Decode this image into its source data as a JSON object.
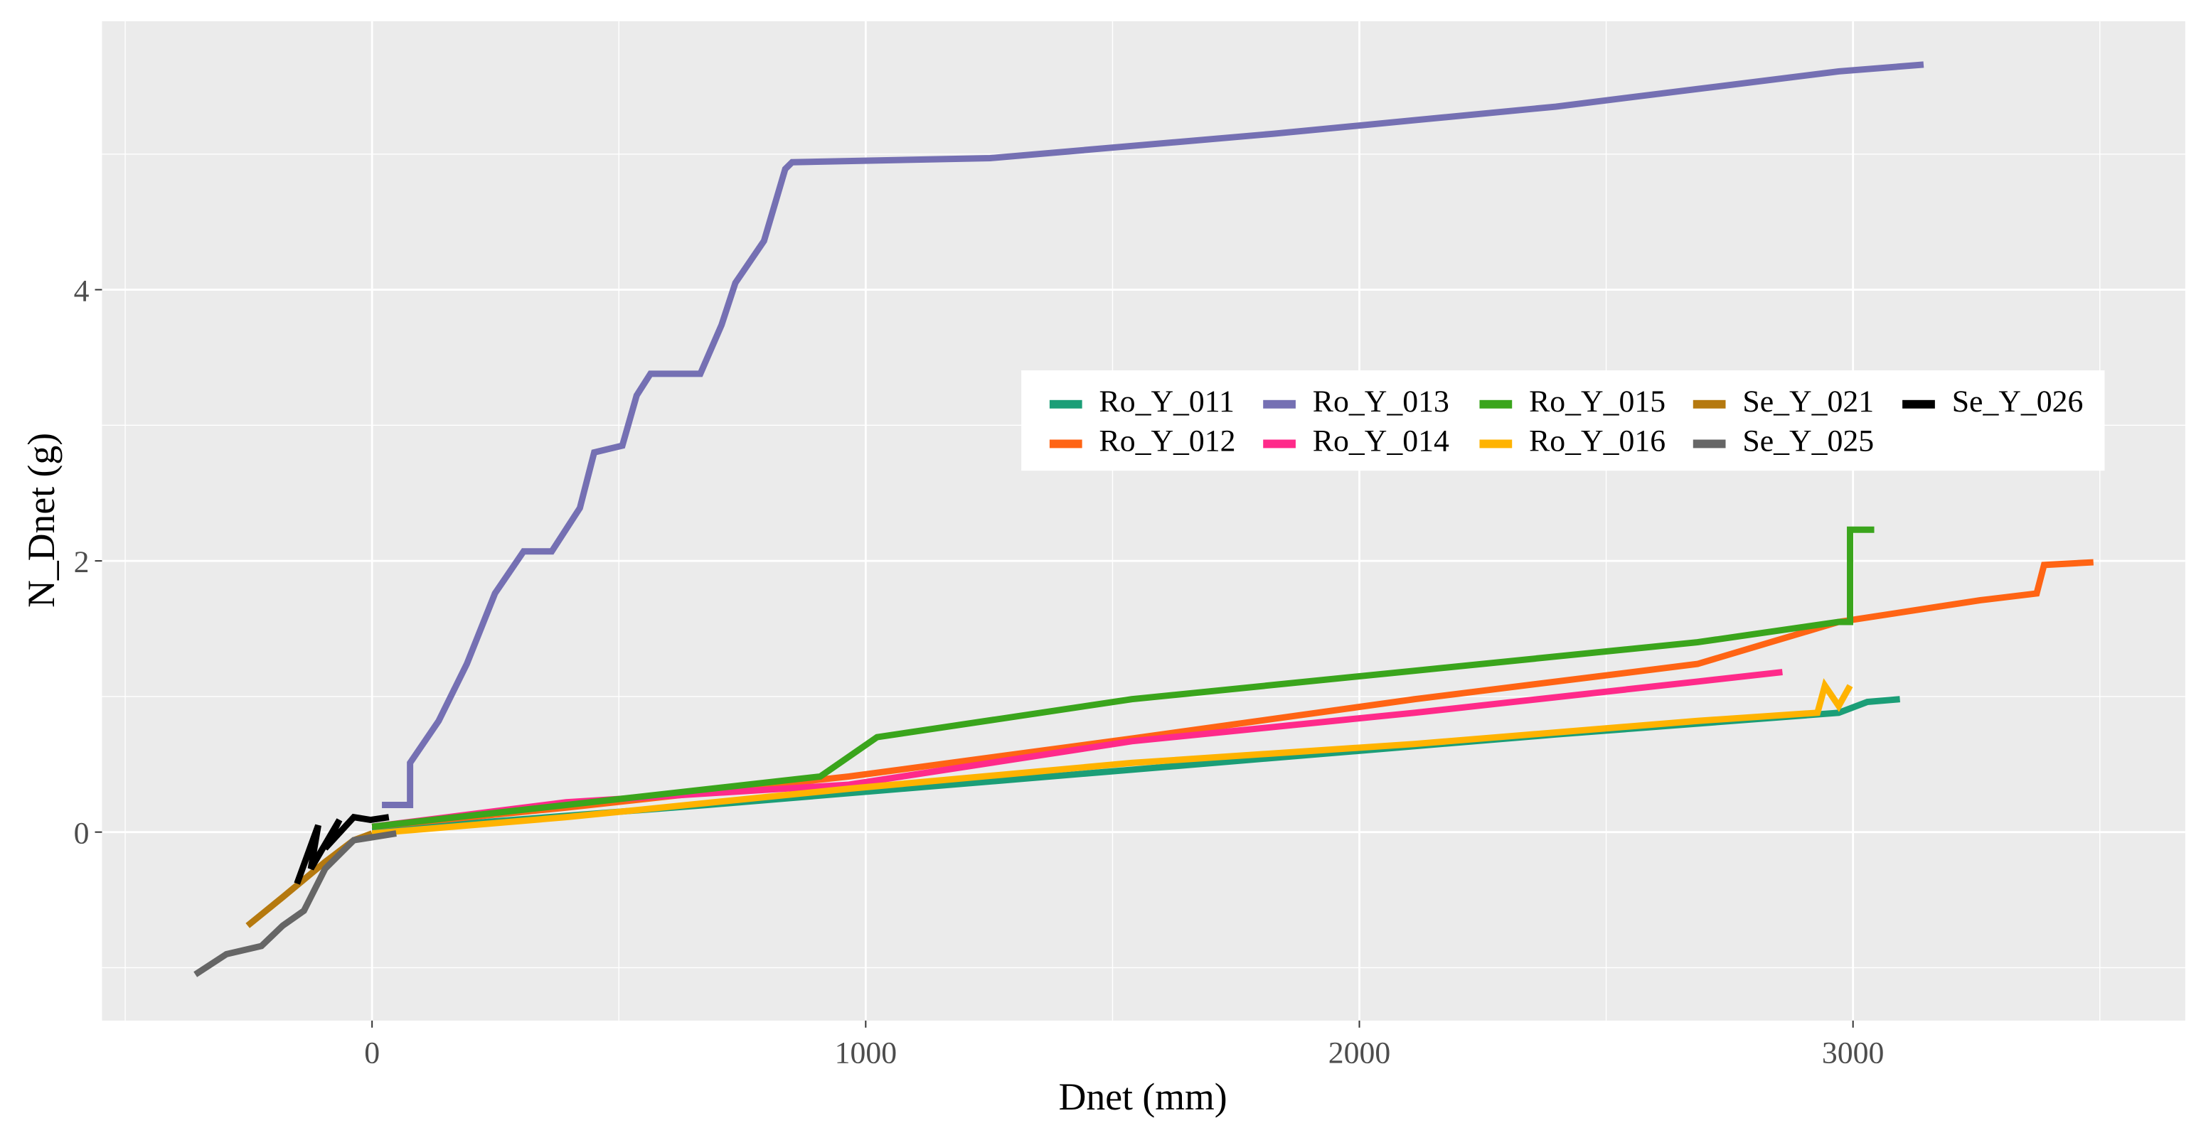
{
  "chart_data": {
    "type": "line",
    "x_label": "Dnet (mm)",
    "y_label": "N_Dnet (g)",
    "xlim": [
      -547,
      3673
    ],
    "ylim": [
      -1.39,
      5.98
    ],
    "xticks": [
      0,
      1000,
      2000,
      3000
    ],
    "yticks": [
      0,
      2,
      4
    ],
    "xminor": [
      -500,
      500,
      1500,
      2500,
      3500
    ],
    "yminor": [
      -1,
      1,
      3,
      5
    ],
    "grid": true,
    "series": [
      {
        "name": "Ro_Y_011",
        "color": "#1b9e77",
        "x": [
          0,
          679,
          1539,
          2398,
          2971,
          3029,
          3095
        ],
        "values": [
          0.01,
          0.2,
          0.46,
          0.72,
          0.88,
          0.96,
          0.98
        ]
      },
      {
        "name": "Ro_Y_012",
        "color": "#ff6414",
        "x": [
          0,
          393,
          966,
          1539,
          2112,
          2685,
          2971,
          3258,
          3372,
          3387,
          3487
        ],
        "values": [
          0.04,
          0.18,
          0.41,
          0.69,
          0.98,
          1.24,
          1.55,
          1.71,
          1.76,
          1.97,
          1.99
        ]
      },
      {
        "name": "Ro_Y_013",
        "color": "#7570b3",
        "x": [
          20,
          77,
          77,
          135,
          192,
          249,
          307,
          364,
          421,
          450,
          507,
          536,
          564,
          665,
          708,
          736,
          794,
          837,
          851,
          1252,
          1539,
          1826,
          2112,
          2398,
          2685,
          2971,
          3143
        ],
        "values": [
          0.2,
          0.2,
          0.51,
          0.82,
          1.24,
          1.76,
          2.07,
          2.07,
          2.39,
          2.8,
          2.85,
          3.22,
          3.38,
          3.38,
          3.74,
          4.05,
          4.36,
          4.89,
          4.94,
          4.97,
          5.06,
          5.15,
          5.25,
          5.35,
          5.48,
          5.61,
          5.66
        ]
      },
      {
        "name": "Ro_Y_014",
        "color": "#ff2a8a",
        "x": [
          0,
          393,
          966,
          1539,
          2112,
          2685,
          2857
        ],
        "values": [
          0.04,
          0.22,
          0.35,
          0.67,
          0.88,
          1.11,
          1.18
        ]
      },
      {
        "name": "Ro_Y_015",
        "color": "#3aa51c",
        "x": [
          0,
          393,
          908,
          1023,
          1539,
          2112,
          2685,
          2971,
          2994,
          2994,
          3043
        ],
        "values": [
          0.04,
          0.2,
          0.41,
          0.7,
          0.98,
          1.19,
          1.4,
          1.55,
          1.55,
          2.23,
          2.23
        ]
      },
      {
        "name": "Ro_Y_016",
        "color": "#ffb300",
        "x": [
          0,
          393,
          966,
          1539,
          2112,
          2685,
          2928,
          2943,
          2971,
          2994
        ],
        "values": [
          -0.01,
          0.11,
          0.32,
          0.51,
          0.65,
          0.82,
          0.88,
          1.08,
          0.93,
          1.08
        ]
      },
      {
        "name": "Se_Y_021",
        "color": "#b5790f",
        "x": [
          -252,
          -181,
          -95,
          -37,
          0
        ],
        "values": [
          -0.69,
          -0.48,
          -0.22,
          -0.06,
          -0.01
        ]
      },
      {
        "name": "Se_Y_025",
        "color": "#666666",
        "x": [
          -358,
          -295,
          -224,
          -181,
          -138,
          -95,
          -37,
          49
        ],
        "values": [
          -1.05,
          -0.9,
          -0.84,
          -0.69,
          -0.58,
          -0.27,
          -0.06,
          -0.01
        ]
      },
      {
        "name": "Se_Y_026",
        "color": "#000000",
        "x": [
          -152,
          -109,
          -124,
          -66,
          -95,
          -37,
          -3,
          34
        ],
        "values": [
          -0.38,
          0.05,
          -0.27,
          0.09,
          -0.12,
          0.11,
          0.09,
          0.11
        ]
      }
    ]
  }
}
